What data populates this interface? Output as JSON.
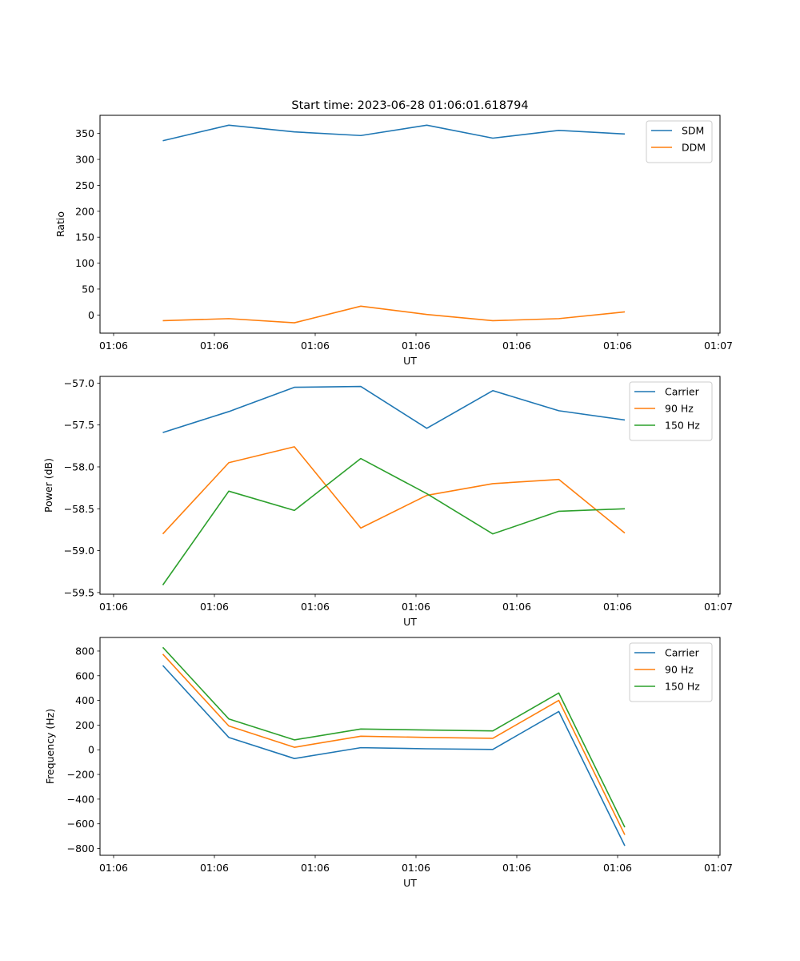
{
  "figure_title": "Start time: 2023-06-28 01:06:01.618794",
  "chart_data": [
    {
      "type": "line",
      "title": "Start time: 2023-06-28 01:06:01.618794",
      "xlabel": "UT",
      "ylabel": "Ratio",
      "x_tick_labels": [
        "01:06",
        "01:06",
        "01:06",
        "01:06",
        "01:06",
        "01:06",
        "01:07"
      ],
      "y_ticks": [
        0,
        50,
        100,
        150,
        200,
        250,
        300,
        350
      ],
      "ylim": [
        -35,
        385
      ],
      "legend_position": "upper right",
      "grid": false,
      "series": [
        {
          "name": "SDM",
          "color": "#1f77b4",
          "values": [
            336,
            366,
            353,
            346,
            366,
            341,
            356,
            349
          ]
        },
        {
          "name": "DDM",
          "color": "#ff7f0e",
          "values": [
            -11,
            -7,
            -15,
            17,
            1,
            -11,
            -7,
            6
          ]
        }
      ]
    },
    {
      "type": "line",
      "title": "",
      "xlabel": "UT",
      "ylabel": "Power (dB)",
      "x_tick_labels": [
        "01:06",
        "01:06",
        "01:06",
        "01:06",
        "01:06",
        "01:06",
        "01:07"
      ],
      "y_ticks": [
        -59.5,
        -59.0,
        -58.5,
        -58.0,
        -57.5,
        -57.0
      ],
      "y_tick_labels": [
        "−59.5",
        "−59.0",
        "−58.5",
        "−58.0",
        "−57.5",
        "−57.0"
      ],
      "ylim": [
        -59.52,
        -56.92
      ],
      "legend_position": "upper right",
      "grid": false,
      "series": [
        {
          "name": "Carrier",
          "color": "#1f77b4",
          "values": [
            -57.59,
            -57.34,
            -57.05,
            -57.04,
            -57.54,
            -57.09,
            -57.33,
            -57.44
          ]
        },
        {
          "name": "90 Hz",
          "color": "#ff7f0e",
          "values": [
            -58.8,
            -57.95,
            -57.76,
            -58.73,
            -58.34,
            -58.2,
            -58.15,
            -58.79
          ]
        },
        {
          "name": "150 Hz",
          "color": "#2ca02c",
          "values": [
            -59.41,
            -58.29,
            -58.52,
            -57.9,
            -58.32,
            -58.8,
            -58.53,
            -58.5
          ]
        }
      ]
    },
    {
      "type": "line",
      "title": "",
      "xlabel": "UT",
      "ylabel": "Frequency (Hz)",
      "x_tick_labels": [
        "01:06",
        "01:06",
        "01:06",
        "01:06",
        "01:06",
        "01:06",
        "01:07"
      ],
      "y_ticks": [
        -800,
        -600,
        -400,
        -200,
        0,
        200,
        400,
        600,
        800
      ],
      "y_tick_labels": [
        "−800",
        "−600",
        "−400",
        "−200",
        "0",
        "200",
        "400",
        "600",
        "800"
      ],
      "ylim": [
        -855,
        910
      ],
      "legend_position": "upper right",
      "grid": false,
      "series": [
        {
          "name": "Carrier",
          "color": "#1f77b4",
          "values": [
            683,
            100,
            -71,
            17,
            8,
            3,
            310,
            -778
          ]
        },
        {
          "name": "90 Hz",
          "color": "#ff7f0e",
          "values": [
            775,
            193,
            20,
            110,
            100,
            93,
            400,
            -689
          ]
        },
        {
          "name": "150 Hz",
          "color": "#2ca02c",
          "values": [
            830,
            250,
            80,
            168,
            160,
            153,
            460,
            -628
          ]
        }
      ]
    }
  ]
}
